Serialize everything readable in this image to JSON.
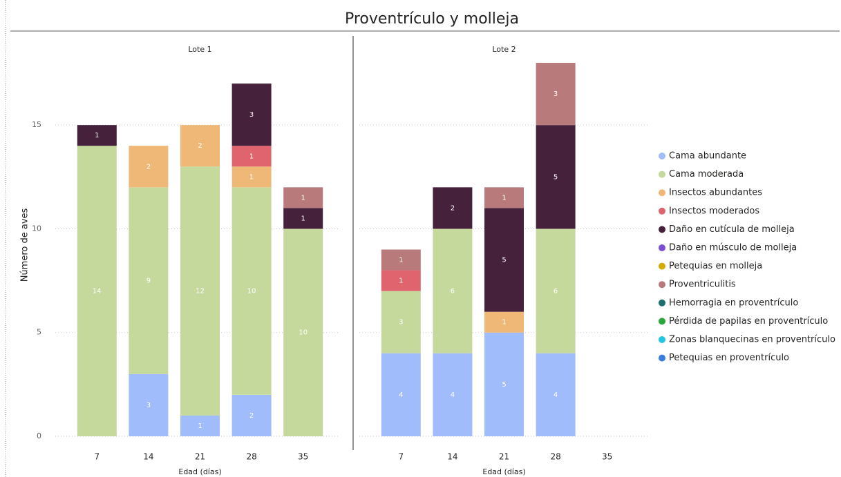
{
  "chart_data": {
    "type": "bar",
    "stacked": true,
    "title": "Proventrículo y molleja",
    "y_label": "Número de aves",
    "x_label": "Edad (días)",
    "panels": [
      "Lote 1",
      "Lote 2"
    ],
    "categories": [
      "7",
      "14",
      "21",
      "28",
      "35"
    ],
    "ylim": [
      0,
      18
    ],
    "yticks": [
      0,
      5,
      10,
      15
    ],
    "grid": true,
    "legend": "right",
    "series": [
      {
        "name": "Cama abundante",
        "color": "#a0bcfa",
        "values": [
          [
            null,
            3,
            1,
            2,
            null
          ],
          [
            4,
            4,
            5,
            4,
            null
          ]
        ]
      },
      {
        "name": "Cama moderada",
        "color": "#c5d99d",
        "values": [
          [
            14,
            9,
            12,
            10,
            10
          ],
          [
            3,
            6,
            null,
            6,
            null
          ]
        ]
      },
      {
        "name": "Insectos abundantes",
        "color": "#f0b877",
        "values": [
          [
            null,
            2,
            2,
            1,
            null
          ],
          [
            null,
            null,
            1,
            null,
            null
          ]
        ]
      },
      {
        "name": "Insectos moderados",
        "color": "#e0646e",
        "values": [
          [
            null,
            null,
            null,
            1,
            null
          ],
          [
            1,
            null,
            null,
            null,
            null
          ]
        ]
      },
      {
        "name": "Daño en cutícula de molleja",
        "color": "#45213c",
        "values": [
          [
            1,
            null,
            null,
            3,
            1
          ],
          [
            null,
            2,
            5,
            5,
            null
          ]
        ]
      },
      {
        "name": "Daño en músculo de molleja",
        "color": "#7a4ed6",
        "values": [
          [
            null,
            null,
            null,
            null,
            null
          ],
          [
            null,
            null,
            null,
            null,
            null
          ]
        ]
      },
      {
        "name": "Petequias en molleja",
        "color": "#d4a900",
        "values": [
          [
            null,
            null,
            null,
            null,
            null
          ],
          [
            null,
            null,
            null,
            null,
            null
          ]
        ]
      },
      {
        "name": "Proventriculitis",
        "color": "#b87a7a",
        "values": [
          [
            null,
            null,
            null,
            null,
            1
          ],
          [
            1,
            null,
            1,
            3,
            null
          ]
        ]
      },
      {
        "name": "Hemorragia en proventrículo",
        "color": "#1b6e6e",
        "values": [
          [
            null,
            null,
            null,
            null,
            null
          ],
          [
            null,
            null,
            null,
            null,
            null
          ]
        ]
      },
      {
        "name": "Pérdida de papilas en proventrículo",
        "color": "#2aa63a",
        "values": [
          [
            null,
            null,
            null,
            null,
            null
          ],
          [
            null,
            null,
            null,
            null,
            null
          ]
        ]
      },
      {
        "name": "Zonas blanquecinas en proventrículo",
        "color": "#20c8e0",
        "values": [
          [
            null,
            null,
            null,
            null,
            null
          ],
          [
            null,
            null,
            null,
            null,
            null
          ]
        ]
      },
      {
        "name": "Petequias en proventrículo",
        "color": "#3a7fe0",
        "values": [
          [
            null,
            null,
            null,
            null,
            null
          ],
          [
            null,
            null,
            null,
            null,
            null
          ]
        ]
      }
    ]
  }
}
